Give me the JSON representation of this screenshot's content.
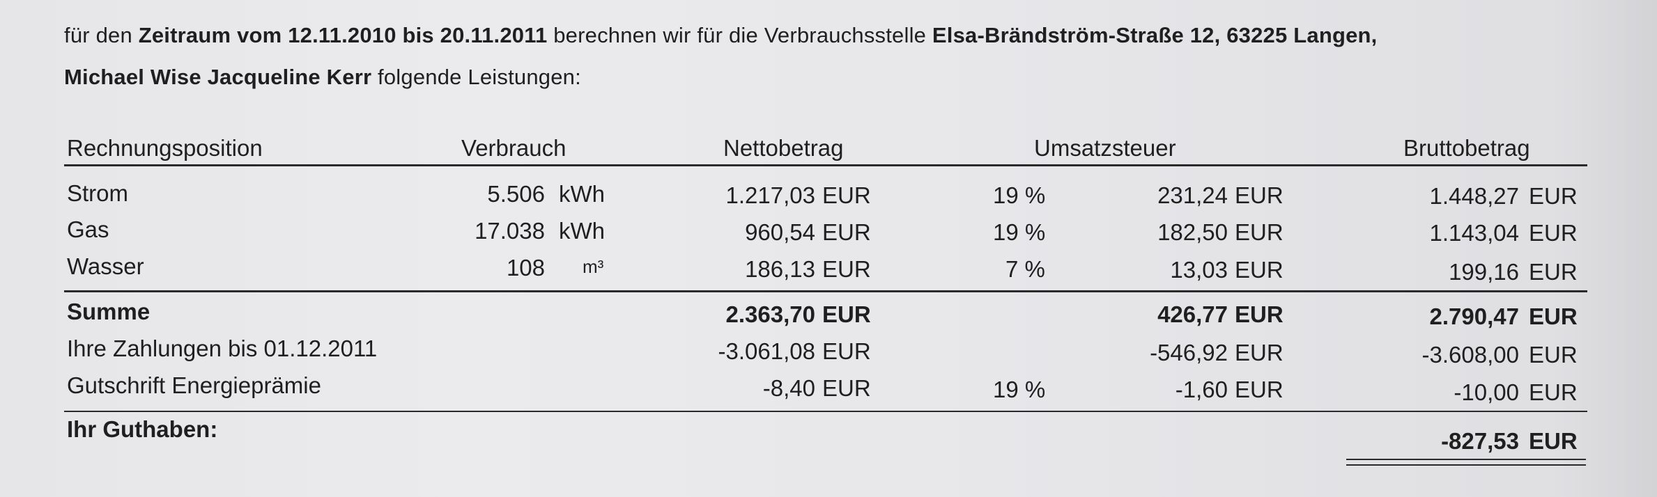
{
  "intro": {
    "line1_prefix": "für den ",
    "period_label": "Zeitraum vom 12.11.2010 bis 20.11.2011",
    "line1_mid": " berechnen wir für die Verbrauchsstelle ",
    "address": "Elsa-Brändström-Straße 12, 63225 Langen,",
    "names": "Michael Wise Jacqueline Kerr",
    "line2_suffix": " folgende Leistungen:"
  },
  "table": {
    "headers": {
      "position": "Rechnungsposition",
      "consumption": "Verbrauch",
      "net": "Nettobetrag",
      "vat": "Umsatzsteuer",
      "gross": "Bruttobetrag"
    },
    "rows": [
      {
        "label": "Strom",
        "consumption": "5.506",
        "unit": "kWh",
        "net": "1.217,03",
        "net_currency": "EUR",
        "vat_rate": "19 %",
        "vat": "231,24",
        "vat_currency": "EUR",
        "gross": "1.448,27",
        "gross_currency": "EUR"
      },
      {
        "label": "Gas",
        "consumption": "17.038",
        "unit": "kWh",
        "net": "960,54",
        "net_currency": "EUR",
        "vat_rate": "19 %",
        "vat": "182,50",
        "vat_currency": "EUR",
        "gross": "1.143,04",
        "gross_currency": "EUR"
      },
      {
        "label": "Wasser",
        "consumption": "108",
        "unit": "m³",
        "net": "186,13",
        "net_currency": "EUR",
        "vat_rate": "7 %",
        "vat": "13,03",
        "vat_currency": "EUR",
        "gross": "199,16",
        "gross_currency": "EUR"
      }
    ],
    "sum": {
      "label": "Summe",
      "net": "2.363,70",
      "net_currency": "EUR",
      "vat": "426,77",
      "vat_currency": "EUR",
      "gross": "2.790,47",
      "gross_currency": "EUR"
    },
    "payments": {
      "label": "Ihre Zahlungen bis 01.12.2011",
      "net": "-3.061,08",
      "net_currency": "EUR",
      "vat": "-546,92",
      "vat_currency": "EUR",
      "gross": "-3.608,00",
      "gross_currency": "EUR"
    },
    "credit": {
      "label": "Gutschrift Energieprämie",
      "net": "-8,40",
      "net_currency": "EUR",
      "vat_rate": "19 %",
      "vat": "-1,60",
      "vat_currency": "EUR",
      "gross": "-10,00",
      "gross_currency": "EUR"
    },
    "balance": {
      "label": "Ihr Guthaben:",
      "gross": "-827,53",
      "gross_currency": "EUR"
    }
  }
}
